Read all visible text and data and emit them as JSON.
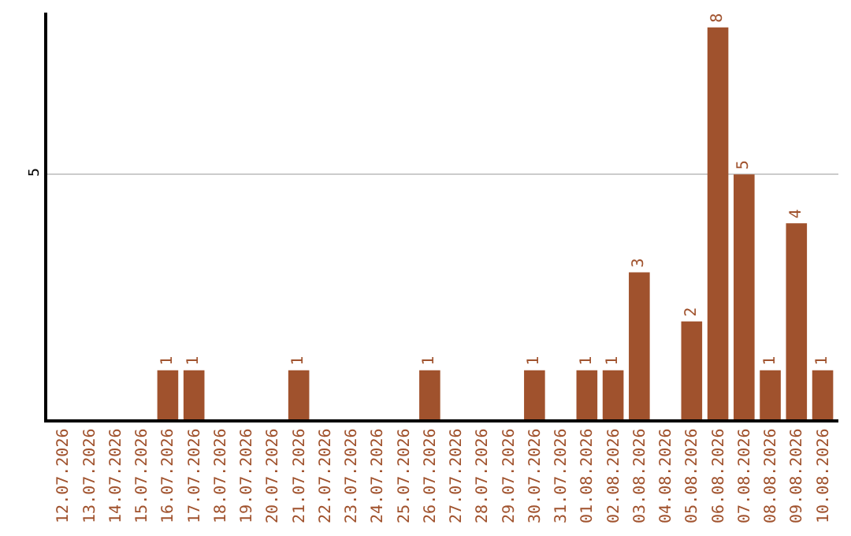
{
  "chart_data": {
    "type": "bar",
    "categories": [
      "12.07.2026",
      "13.07.2026",
      "14.07.2026",
      "15.07.2026",
      "16.07.2026",
      "17.07.2026",
      "18.07.2026",
      "19.07.2026",
      "20.07.2026",
      "21.07.2026",
      "22.07.2026",
      "23.07.2026",
      "24.07.2026",
      "25.07.2026",
      "26.07.2026",
      "27.07.2026",
      "28.07.2026",
      "29.07.2026",
      "30.07.2026",
      "31.07.2026",
      "01.08.2026",
      "02.08.2026",
      "03.08.2026",
      "04.08.2026",
      "05.08.2026",
      "06.08.2026",
      "07.08.2026",
      "08.08.2026",
      "09.08.2026",
      "10.08.2026"
    ],
    "values": [
      0,
      0,
      0,
      0,
      1,
      1,
      0,
      0,
      0,
      1,
      0,
      0,
      0,
      0,
      1,
      0,
      0,
      0,
      1,
      0,
      1,
      1,
      3,
      0,
      2,
      8,
      5,
      1,
      4,
      1
    ],
    "value_labels": [
      null,
      null,
      null,
      null,
      "1",
      "1",
      null,
      null,
      null,
      "1",
      null,
      null,
      null,
      null,
      "1",
      null,
      null,
      null,
      "1",
      null,
      "1",
      "1",
      "3",
      null,
      "2",
      "8",
      "5",
      "1",
      "4",
      "1"
    ],
    "color": "#a0522d",
    "ylim": [
      0,
      8.3
    ],
    "yticks": [
      5
    ],
    "grid": "y",
    "legend": false
  }
}
